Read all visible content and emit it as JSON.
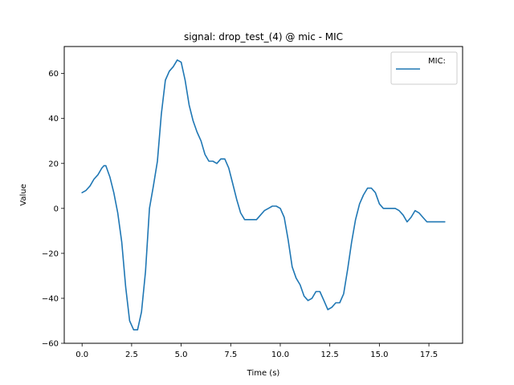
{
  "chart_data": {
    "type": "line",
    "title": "signal: drop_test_(4) @ mic - MIC",
    "xlabel": "Time (s)",
    "ylabel": "Value",
    "xlim": [
      -0.9,
      19.2
    ],
    "ylim": [
      -60,
      72
    ],
    "xticks": [
      0.0,
      2.5,
      5.0,
      7.5,
      10.0,
      12.5,
      15.0,
      17.5
    ],
    "xtick_labels": [
      "0.0",
      "2.5",
      "5.0",
      "7.5",
      "10.0",
      "12.5",
      "15.0",
      "17.5"
    ],
    "yticks": [
      -60,
      -40,
      -20,
      0,
      20,
      40,
      60
    ],
    "ytick_labels": [
      "−60",
      "−40",
      "−20",
      "0",
      "20",
      "40",
      "60"
    ],
    "grid": false,
    "legend_position": "top-right",
    "series": [
      {
        "name": "MIC:",
        "color": "#1f77b4",
        "x": [
          0.0,
          0.2,
          0.4,
          0.6,
          0.8,
          1.0,
          1.1,
          1.2,
          1.4,
          1.6,
          1.8,
          2.0,
          2.2,
          2.4,
          2.6,
          2.8,
          3.0,
          3.2,
          3.4,
          3.6,
          3.8,
          4.0,
          4.2,
          4.4,
          4.6,
          4.8,
          5.0,
          5.2,
          5.4,
          5.6,
          5.8,
          6.0,
          6.2,
          6.4,
          6.6,
          6.8,
          7.0,
          7.2,
          7.4,
          7.6,
          7.8,
          8.0,
          8.2,
          8.4,
          8.6,
          8.8,
          9.0,
          9.2,
          9.4,
          9.6,
          9.8,
          10.0,
          10.2,
          10.4,
          10.6,
          10.8,
          11.0,
          11.2,
          11.4,
          11.6,
          11.8,
          12.0,
          12.2,
          12.4,
          12.6,
          12.8,
          13.0,
          13.2,
          13.4,
          13.6,
          13.8,
          14.0,
          14.2,
          14.4,
          14.6,
          14.8,
          15.0,
          15.2,
          15.4,
          15.6,
          15.8,
          16.0,
          16.2,
          16.4,
          16.6,
          16.8,
          17.0,
          17.2,
          17.4,
          17.6,
          17.8,
          18.0,
          18.2,
          18.3
        ],
        "y": [
          7,
          8,
          10,
          13,
          15,
          18,
          19,
          19,
          14,
          7,
          -2,
          -15,
          -35,
          -50,
          -54,
          -54,
          -46,
          -28,
          0,
          10,
          21,
          42,
          57,
          61,
          63,
          66,
          65,
          57,
          46,
          39,
          34,
          30,
          24,
          21,
          21,
          20,
          22,
          22,
          18,
          11,
          4,
          -2,
          -5,
          -5,
          -5,
          -5,
          -3,
          -1,
          0,
          1,
          1,
          0,
          -4,
          -14,
          -26,
          -31,
          -34,
          -39,
          -41,
          -40,
          -37,
          -37,
          -41,
          -45,
          -44,
          -42,
          -42,
          -38,
          -27,
          -15,
          -5,
          2,
          6,
          9,
          9,
          7,
          2,
          0,
          0,
          0,
          0,
          -1,
          -3,
          -6,
          -4,
          -1,
          -2,
          -4,
          -6,
          -6,
          -6,
          -6,
          -6,
          -6
        ]
      }
    ]
  }
}
